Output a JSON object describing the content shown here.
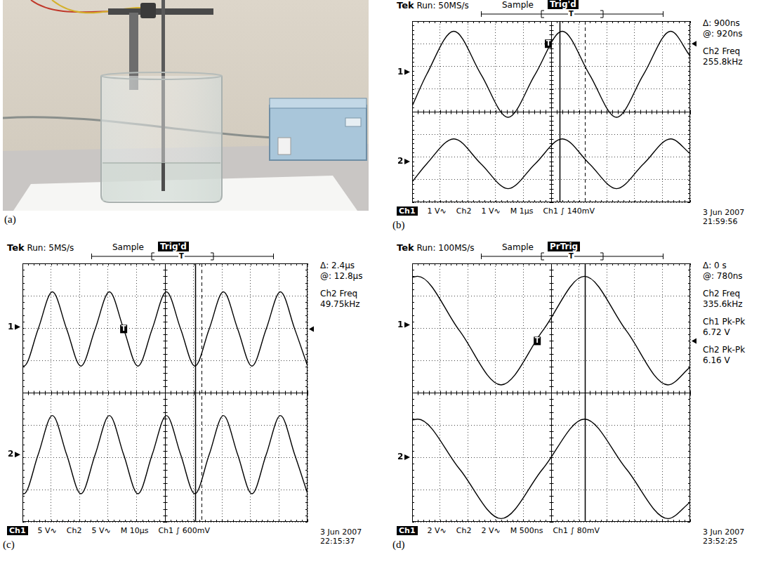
{
  "photo": {
    "panel": "(a)"
  },
  "chart_data": [
    {
      "type": "line",
      "panel": "(b)",
      "header": [
        "Tek Run: 50MS/s",
        "Sample",
        "Trig'd"
      ],
      "readouts": [
        [
          "Δ: 900ns",
          "@: 920ns"
        ],
        [
          "Ch2 Freq",
          "255.8kHz"
        ]
      ],
      "footer": [
        "Ch1",
        "1 V∿",
        "Ch2",
        "1 V∿",
        "M 1µs",
        "Ch1 ∫ 140mV"
      ],
      "date": [
        "3 Jun 2007",
        "21:59:56"
      ],
      "xlim": [
        0,
        10
      ],
      "ylim": [
        -4,
        4
      ],
      "xticks": [
        0,
        1,
        2,
        3,
        4,
        5,
        6,
        7,
        8,
        9,
        10
      ],
      "yticks": [
        -4,
        -3,
        -2,
        -1,
        0,
        1,
        2,
        3,
        4
      ],
      "grid": true,
      "tick_labels": false,
      "x": [
        0,
        0.525,
        1.5,
        2.475,
        3.45,
        4.425,
        5.4,
        6.375,
        7.35,
        8.325,
        9.3,
        10
      ],
      "series": [
        {
          "name": "1",
          "color": "#000000",
          "ground": 1.75,
          "values": [
            0.25,
            1.65,
            3.55,
            1.65,
            -0.25,
            1.65,
            3.55,
            1.65,
            -0.25,
            1.65,
            3.55,
            2.45
          ]
        },
        {
          "name": "2",
          "color": "#000000",
          "ground": -2.2,
          "values": [
            -3.1,
            -2.3,
            -1.2,
            -2.3,
            -3.4,
            -2.3,
            -1.2,
            -2.3,
            -3.4,
            -2.3,
            -1.2,
            -1.85
          ]
        }
      ],
      "cursors": [
        {
          "x": 5.3,
          "line_style": "solid"
        },
        {
          "x": 6.2,
          "line_style": "dashed"
        }
      ],
      "trigger": {
        "label": "T",
        "x": 4.9,
        "y": 3.0
      }
    },
    {
      "type": "line",
      "panel": "(c)",
      "header": [
        "Tek Run: 5MS/s",
        "Sample",
        "Trig'd"
      ],
      "readouts": [
        [
          "Δ: 2.4µs",
          "@: 12.8µs"
        ],
        [
          "Ch2 Freq",
          "49.75kHz"
        ]
      ],
      "footer": [
        "Ch1",
        "5 V∿",
        "Ch2",
        "5 V∿",
        "M 10µs",
        "Ch1 ∫ 600mV"
      ],
      "date": [
        "3 Jun 2007",
        "22:15:37"
      ],
      "xlim": [
        0,
        10
      ],
      "ylim": [
        -4,
        4
      ],
      "xticks": [
        0,
        1,
        2,
        3,
        4,
        5,
        6,
        7,
        8,
        9,
        10
      ],
      "yticks": [
        -4,
        -3,
        -2,
        -1,
        0,
        1,
        2,
        3,
        4
      ],
      "grid": true,
      "tick_labels": false,
      "x": [
        0,
        0.05,
        0.55,
        1.05,
        1.55,
        2.05,
        2.55,
        3.05,
        3.55,
        4.05,
        4.55,
        5.05,
        5.55,
        6.05,
        6.55,
        7.05,
        7.55,
        8.05,
        8.55,
        9.05,
        9.55,
        10
      ],
      "series": [
        {
          "name": "1",
          "color": "#000000",
          "ground": 2.03,
          "values": [
            0.83,
            0.82,
            1.97,
            3.12,
            1.97,
            0.82,
            1.97,
            3.12,
            1.97,
            0.82,
            1.97,
            3.12,
            1.97,
            0.82,
            1.97,
            3.12,
            1.97,
            0.82,
            1.97,
            3.12,
            1.97,
            0.83
          ]
        },
        {
          "name": "2",
          "color": "#000000",
          "ground": -1.92,
          "values": [
            -3.12,
            -3.13,
            -1.92,
            -0.71,
            -1.92,
            -3.13,
            -1.92,
            -0.71,
            -1.92,
            -3.13,
            -1.92,
            -0.71,
            -1.92,
            -3.13,
            -1.92,
            -0.71,
            -1.92,
            -3.13,
            -1.92,
            -0.71,
            -1.92,
            -3.12
          ]
        }
      ],
      "cursors": [
        {
          "x": 6.05,
          "line_style": "solid"
        },
        {
          "x": 6.29,
          "line_style": "dashed"
        }
      ],
      "trigger": {
        "label": "T",
        "x": 3.55,
        "y": 1.97
      }
    },
    {
      "type": "line",
      "panel": "(d)",
      "header": [
        "Tek Run: 100MS/s",
        "Sample",
        "PrTrig"
      ],
      "readouts": [
        [
          "Δ: 0 s",
          "@: 780ns"
        ],
        [
          "Ch2 Freq",
          "335.6kHz"
        ],
        [
          "Ch1 Pk-Pk",
          "6.72 V"
        ],
        [
          "Ch2 Pk-Pk",
          "6.16 V"
        ]
      ],
      "footer": [
        "Ch1",
        "2 V∿",
        "Ch2",
        "2 V∿",
        "M 500ns",
        "Ch1 ∫ 80mV"
      ],
      "date": [
        "3 Jun 2007",
        "23:52:25"
      ],
      "xlim": [
        0,
        10
      ],
      "ylim": [
        -4,
        4
      ],
      "xticks": [
        0,
        1,
        2,
        3,
        4,
        5,
        6,
        7,
        8,
        9,
        10
      ],
      "yticks": [
        -4,
        -3,
        -2,
        -1,
        0,
        1,
        2,
        3,
        4
      ],
      "grid": true,
      "tick_labels": false,
      "x": [
        0,
        0.2,
        1.7,
        3.2,
        4.7,
        6.2,
        7.7,
        9.2,
        10
      ],
      "series": [
        {
          "name": "1",
          "color": "#000000",
          "ground": 2.1,
          "values": [
            3.57,
            3.6,
            1.92,
            0.24,
            1.92,
            3.6,
            1.92,
            0.24,
            0.79
          ]
        },
        {
          "name": "2",
          "color": "#000000",
          "ground": -2.0,
          "values": [
            -0.85,
            -0.82,
            -2.36,
            -3.9,
            -2.36,
            -0.82,
            -2.36,
            -3.9,
            -3.39
          ]
        }
      ],
      "cursors": [
        {
          "x": 6.2,
          "line_style": "solid"
        }
      ],
      "trigger": {
        "label": "T",
        "x": 4.5,
        "y": 1.6
      }
    }
  ]
}
